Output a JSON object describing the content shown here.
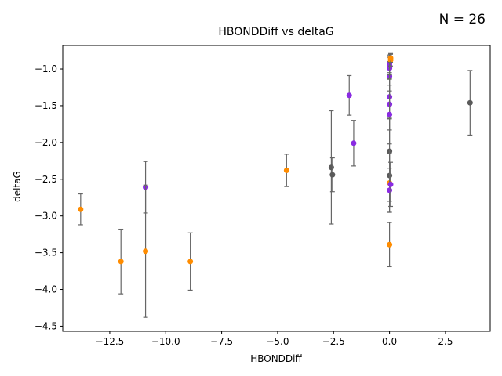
{
  "chart_data": {
    "type": "scatter",
    "title": "HBONDDiff vs deltaG",
    "annotation": "N = 26",
    "xlabel": "HBONDDiff",
    "ylabel": "deltaG",
    "xlim": [
      -14.6,
      4.5
    ],
    "ylim": [
      -4.57,
      -0.68
    ],
    "xticks": [
      -12.5,
      -10.0,
      -7.5,
      -5.0,
      -2.5,
      0.0,
      2.5
    ],
    "xtick_labels": [
      "−12.5",
      "−10.0",
      "−7.5",
      "−5.0",
      "−2.5",
      "0.0",
      "2.5"
    ],
    "yticks": [
      -4.5,
      -4.0,
      -3.5,
      -3.0,
      -2.5,
      -2.0,
      -1.5,
      -1.0
    ],
    "ytick_labels": [
      "−4.5",
      "−4.0",
      "−3.5",
      "−3.0",
      "−2.5",
      "−2.0",
      "−1.5",
      "−1.0"
    ],
    "grid": false,
    "colors": {
      "orange": "#ff8c00",
      "purple": "#8a2be2",
      "gray": "#5a5a5a",
      "errorbar": "#666666"
    },
    "points": [
      {
        "x": -13.8,
        "y": -2.91,
        "err": 0.21,
        "color": "orange"
      },
      {
        "x": -12.0,
        "y": -3.62,
        "err": 0.44,
        "color": "orange"
      },
      {
        "x": -10.9,
        "y": -2.61,
        "err": 0.35,
        "color": "purple"
      },
      {
        "x": -10.9,
        "y": -3.48,
        "err": 0.9,
        "color": "orange"
      },
      {
        "x": -8.9,
        "y": -3.62,
        "err": 0.39,
        "color": "orange"
      },
      {
        "x": -4.6,
        "y": -2.38,
        "err": 0.22,
        "color": "orange"
      },
      {
        "x": -2.6,
        "y": -2.34,
        "err": 0.77,
        "color": "gray"
      },
      {
        "x": -2.55,
        "y": -2.44,
        "err": 0.23,
        "color": "gray"
      },
      {
        "x": -1.8,
        "y": -1.36,
        "err": 0.27,
        "color": "purple"
      },
      {
        "x": -1.6,
        "y": -2.01,
        "err": 0.31,
        "color": "purple"
      },
      {
        "x": 0.0,
        "y": -0.93,
        "err": 0.12,
        "color": "purple"
      },
      {
        "x": 0.0,
        "y": -0.96,
        "err": 0.12,
        "color": "purple"
      },
      {
        "x": 0.0,
        "y": -0.99,
        "err": 0.15,
        "color": "purple"
      },
      {
        "x": 0.0,
        "y": -1.1,
        "err": 0.2,
        "color": "purple"
      },
      {
        "x": 0.0,
        "y": -1.38,
        "err": 0.3,
        "color": "purple"
      },
      {
        "x": 0.0,
        "y": -1.48,
        "err": 0.35,
        "color": "purple"
      },
      {
        "x": 0.0,
        "y": -1.62,
        "err": 0.4,
        "color": "purple"
      },
      {
        "x": 0.0,
        "y": -2.12,
        "err": 0.45,
        "color": "gray"
      },
      {
        "x": 0.0,
        "y": -2.45,
        "err": 0.35,
        "color": "gray"
      },
      {
        "x": 0.0,
        "y": -2.55,
        "err": 0.4,
        "color": "orange"
      },
      {
        "x": 0.0,
        "y": -2.65,
        "err": 0.3,
        "color": "purple"
      },
      {
        "x": 0.05,
        "y": -2.57,
        "err": 0.3,
        "color": "purple"
      },
      {
        "x": 0.05,
        "y": -0.88,
        "err": 0.08,
        "color": "orange"
      },
      {
        "x": 0.05,
        "y": -0.85,
        "err": 0.06,
        "color": "orange"
      },
      {
        "x": 0.0,
        "y": -3.39,
        "err": 0.3,
        "color": "orange"
      },
      {
        "x": 3.6,
        "y": -1.46,
        "err": 0.44,
        "color": "gray"
      }
    ]
  }
}
